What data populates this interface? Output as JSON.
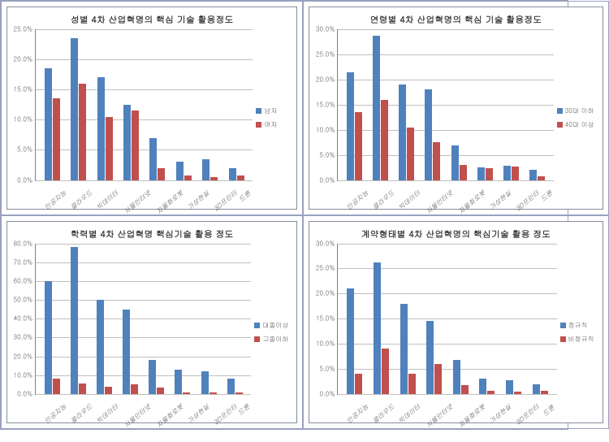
{
  "categories": [
    "인공지능",
    "클라우드",
    "빅데이터",
    "사물인터넷",
    "자율화로봇",
    "가상현실",
    "3D프린터",
    "드론"
  ],
  "colors": {
    "series1": "#4f81bd",
    "series2": "#c0504d",
    "grid": "#c0c0c0",
    "border": "#888c9e",
    "text": "#595959"
  },
  "panels": [
    {
      "title": "성별 4차 산업혁명의 핵심 기술 활용정도",
      "ymax": 25,
      "ystep": 5,
      "legend": [
        "남자",
        "여자"
      ],
      "series": [
        [
          18.5,
          23.5,
          17.0,
          12.5,
          7.0,
          3.0,
          3.5,
          2.0
        ],
        [
          13.5,
          16.0,
          10.5,
          11.5,
          2.0,
          0.8,
          0.5,
          0.7
        ]
      ]
    },
    {
      "title": "연령별 4차 산업혁명의 핵심 기술 활용정도",
      "ymax": 30,
      "ystep": 5,
      "legend": [
        "30대 이하",
        "40대 이상"
      ],
      "series": [
        [
          21.5,
          28.7,
          19.0,
          18.0,
          6.8,
          2.5,
          2.8,
          2.0
        ],
        [
          13.5,
          16.0,
          10.5,
          7.5,
          3.0,
          2.4,
          2.6,
          0.8
        ]
      ]
    },
    {
      "title": "학력별 4차 산업혁명 핵심기술 활용 정도",
      "ymax": 80,
      "ystep": 10,
      "legend": [
        "대졸이상",
        "고졸이하"
      ],
      "series": [
        [
          60.0,
          78.0,
          50.0,
          45.0,
          18.0,
          13.0,
          12.0,
          8.0
        ],
        [
          8.0,
          5.5,
          4.0,
          5.0,
          3.5,
          1.0,
          1.0,
          1.0
        ]
      ]
    },
    {
      "title": "계약형태별 4차 산업혁명의 핵심기술 활용 정도",
      "ymax": 30,
      "ystep": 5,
      "legend": [
        "정규직",
        "비정규직"
      ],
      "series": [
        [
          21.0,
          26.2,
          18.0,
          14.5,
          6.8,
          3.0,
          2.8,
          2.0
        ],
        [
          4.0,
          9.0,
          4.0,
          6.0,
          1.8,
          0.6,
          0.5,
          0.7
        ]
      ]
    }
  ]
}
